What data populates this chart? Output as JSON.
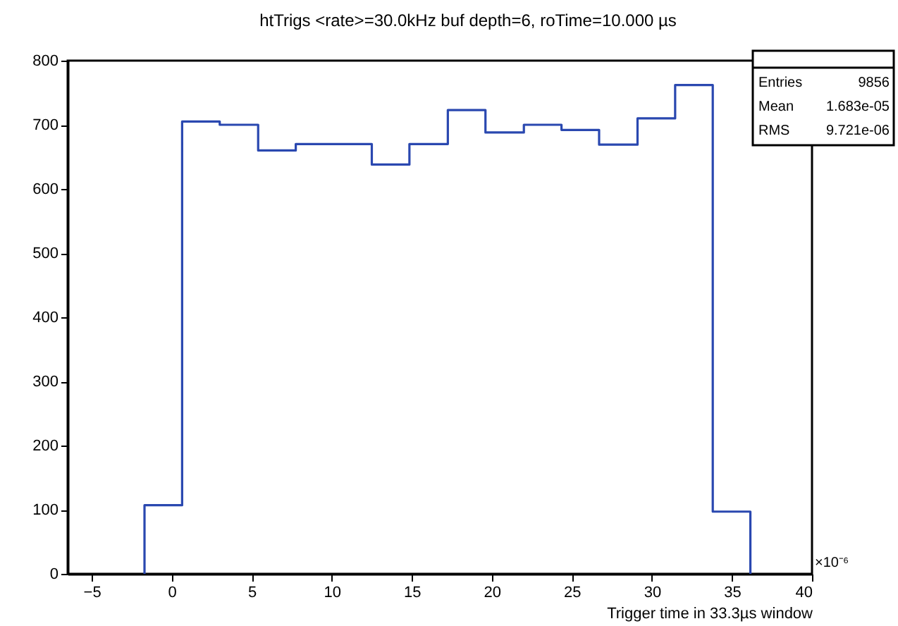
{
  "chart_data": {
    "type": "histogram",
    "title": "htTrigs <rate>=30.0kHz buf depth=6, roTime=10.000     µs",
    "xlabel": "Trigger time in 33.3µs window",
    "bins": [
      -1.7,
      0.65,
      3.0,
      5.4,
      7.75,
      10.1,
      12.5,
      14.85,
      17.25,
      19.6,
      22.0,
      24.35,
      26.7,
      29.1,
      31.45,
      33.8,
      36.15
    ],
    "values": [
      107,
      705,
      700,
      660,
      670,
      670,
      638,
      670,
      723,
      688,
      700,
      692,
      669,
      710,
      762,
      97
    ],
    "color": "#2a48b0",
    "xlim": [
      -6.5,
      40
    ],
    "xticks": [
      -5,
      0,
      5,
      10,
      15,
      20,
      25,
      30,
      35,
      40
    ],
    "ylim": [
      0,
      800
    ],
    "yticks": [
      0,
      100,
      200,
      300,
      400,
      500,
      600,
      700,
      800
    ],
    "grid": false,
    "annotations": [
      "Entries 9856",
      "Mean 1.683e-05",
      "RMS 9.721e-06",
      "×10⁻⁶"
    ]
  }
}
